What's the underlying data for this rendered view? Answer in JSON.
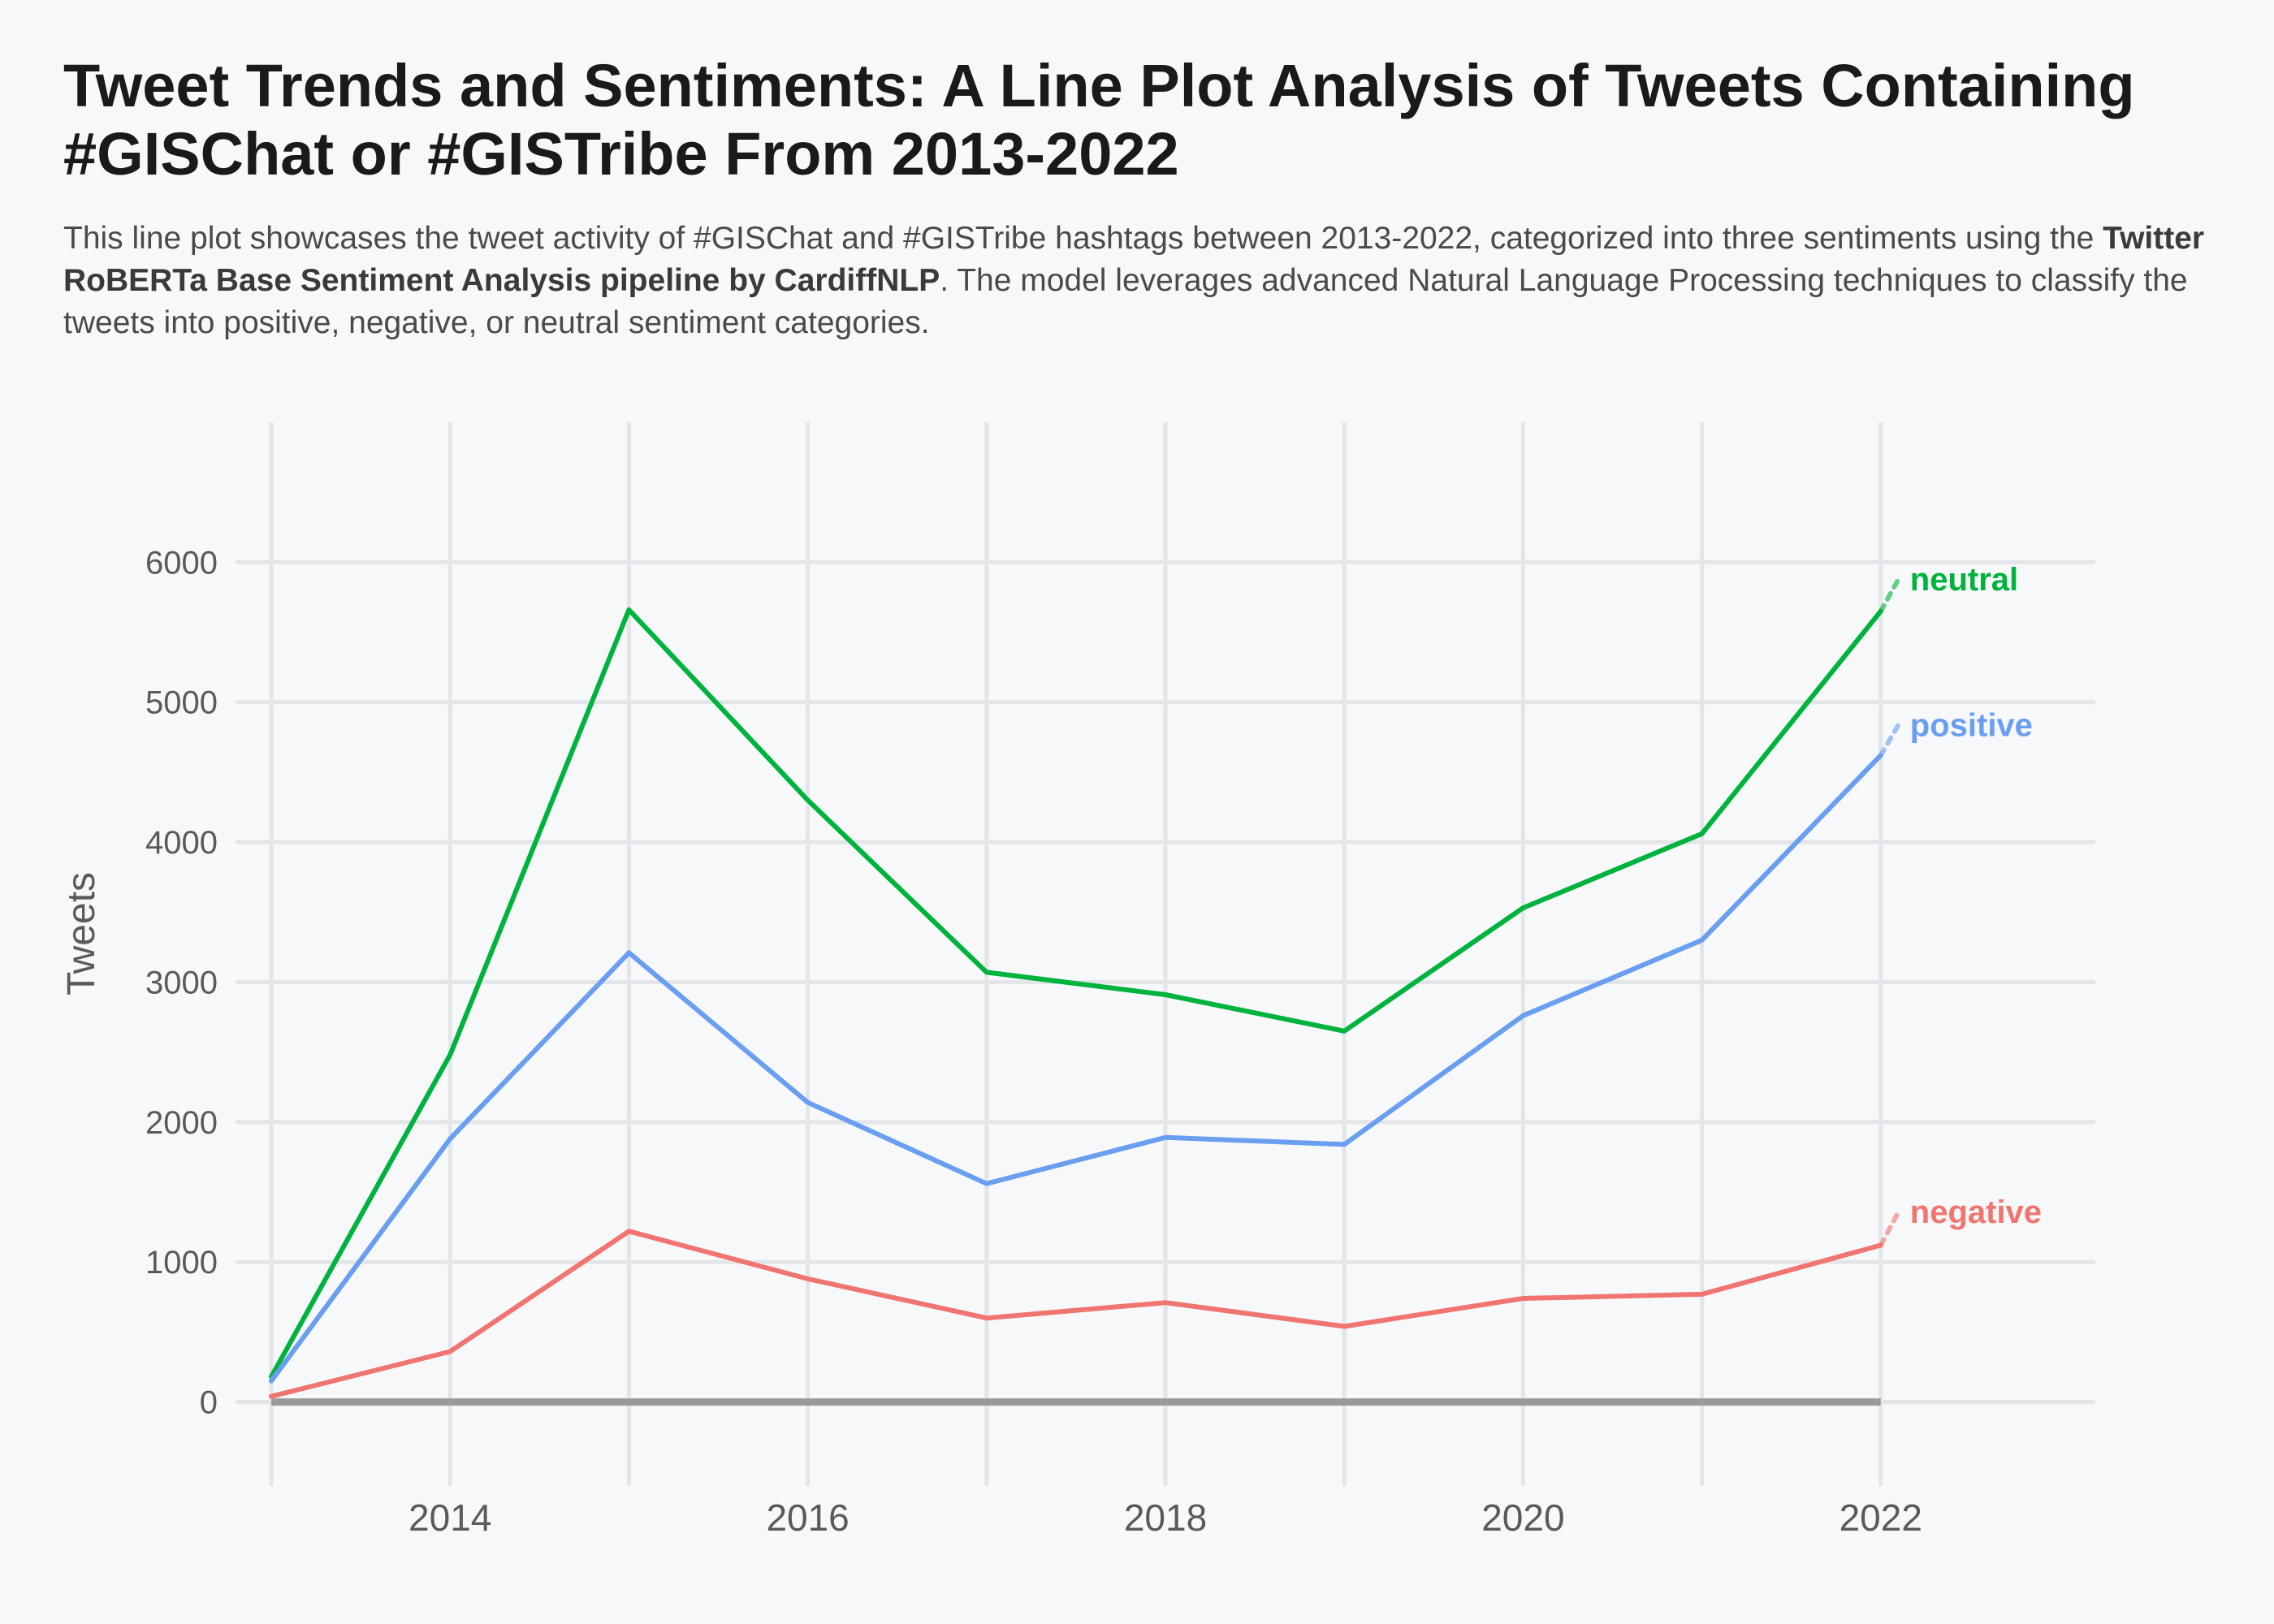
{
  "title": "Tweet Trends and Sentiments: A Line Plot Analysis of Tweets Containing #GISChat or #GISTribe From 2013-2022",
  "subtitle": {
    "part1": "This line plot showcases the tweet activity of #GISChat and #GISTribe hashtags between 2013-2022, categorized into three sentiments using the ",
    "bold": "Twitter RoBERTa Base Sentiment Analysis pipeline by CardiffNLP",
    "part2": ". The model leverages advanced Natural Language Processing techniques to classify the tweets into positive, negative, or neutral sentiment categories."
  },
  "chart_data": {
    "type": "line",
    "title": "Tweet Trends and Sentiments: A Line Plot Analysis of Tweets Containing #GISChat or #GISTribe From 2013-2022",
    "xlabel": "",
    "ylabel": "Tweets",
    "x": [
      2013,
      2014,
      2015,
      2016,
      2017,
      2018,
      2019,
      2020,
      2021,
      2022
    ],
    "xticks": [
      2014,
      2016,
      2018,
      2020,
      2022
    ],
    "yticks": [
      0,
      1000,
      2000,
      3000,
      4000,
      5000,
      6000
    ],
    "xlim": [
      2012.8,
      2023.2
    ],
    "ylim": [
      -600,
      7000
    ],
    "grid": true,
    "legend": "direct labels at line ends (right)",
    "series": [
      {
        "name": "neutral",
        "color": "#00b33c",
        "values": [
          180,
          2480,
          5660,
          4300,
          3070,
          2910,
          2650,
          3530,
          4060,
          5650
        ],
        "label_value": 5880
      },
      {
        "name": "positive",
        "color": "#6a9ef0",
        "values": [
          150,
          1880,
          3210,
          2140,
          1560,
          1890,
          1840,
          2760,
          3300,
          4620
        ],
        "label_value": 4840
      },
      {
        "name": "negative",
        "color": "#f07570",
        "values": [
          40,
          360,
          1220,
          880,
          600,
          710,
          540,
          740,
          770,
          1120
        ],
        "label_value": 1360
      }
    ]
  }
}
